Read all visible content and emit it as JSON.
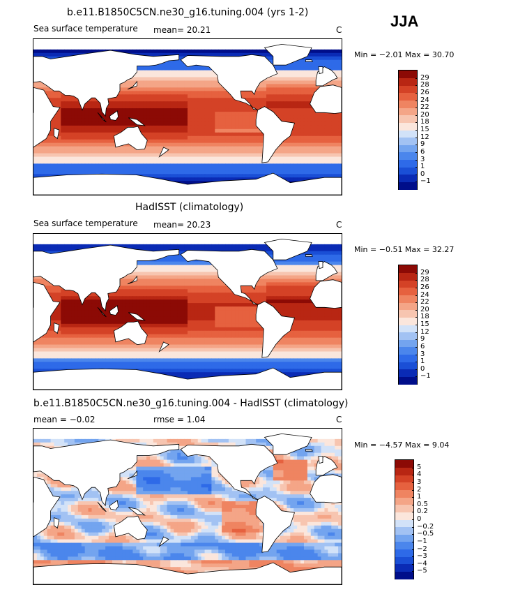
{
  "season": "JJA",
  "panels": [
    {
      "title": "b.e11.B1850C5CN.ne30_g16.tuning.004 (yrs 1-2)",
      "variable": "Sea surface temperature",
      "mean_text": "mean=  20.21",
      "rmse_text": "",
      "units": "C",
      "minmax_text": "Min =  −2.01 Max =  30.70",
      "kind": "abs",
      "colorbar": {
        "colors": [
          "#000e8a",
          "#0a2bb5",
          "#1a4fd6",
          "#2e6ae8",
          "#4b86ec",
          "#73a4ef",
          "#a2c2f3",
          "#d2e2f8",
          "#fbe6dc",
          "#f7c5b0",
          "#f4a587",
          "#ef8461",
          "#e6613f",
          "#d44226",
          "#b82613",
          "#8c0a05"
        ],
        "labels": [
          "−1",
          "0",
          "1",
          "3",
          "6",
          "9",
          "12",
          "15",
          "18",
          "20",
          "22",
          "24",
          "26",
          "28",
          "29"
        ]
      }
    },
    {
      "title": "HadISST (climatology)",
      "variable": "Sea surface temperature",
      "mean_text": "mean=  20.23",
      "rmse_text": "",
      "units": "C",
      "minmax_text": "Min =  −0.51 Max =  32.27",
      "kind": "abs",
      "colorbar": {
        "colors": [
          "#000e8a",
          "#0a2bb5",
          "#1a4fd6",
          "#2e6ae8",
          "#4b86ec",
          "#73a4ef",
          "#a2c2f3",
          "#d2e2f8",
          "#fbe6dc",
          "#f7c5b0",
          "#f4a587",
          "#ef8461",
          "#e6613f",
          "#d44226",
          "#b82613",
          "#8c0a05"
        ],
        "labels": [
          "−1",
          "0",
          "1",
          "3",
          "6",
          "9",
          "12",
          "15",
          "18",
          "20",
          "22",
          "24",
          "26",
          "28",
          "29"
        ]
      }
    },
    {
      "title": "b.e11.B1850C5CN.ne30_g16.tuning.004 - HadISST (climatology)",
      "variable": "",
      "mean_text": "mean =   −0.02",
      "rmse_text": "rmse =    1.04",
      "units": "C",
      "minmax_text": "Min =  −4.57 Max =   9.04",
      "kind": "diff",
      "colorbar": {
        "colors": [
          "#000e8a",
          "#0a2bb5",
          "#1a4fd6",
          "#2e6ae8",
          "#4b86ec",
          "#73a4ef",
          "#a2c2f3",
          "#d2e2f8",
          "#fbe6dc",
          "#f7c5b0",
          "#f4a587",
          "#ef8461",
          "#e6613f",
          "#d44226",
          "#b82613",
          "#8c0a05"
        ],
        "labels": [
          "−5",
          "−4",
          "−3",
          "−2",
          "−1",
          "−0.5",
          "−0.2",
          "0",
          "0.2",
          "0.5",
          "1",
          "2",
          "3",
          "4",
          "5"
        ]
      }
    }
  ]
}
